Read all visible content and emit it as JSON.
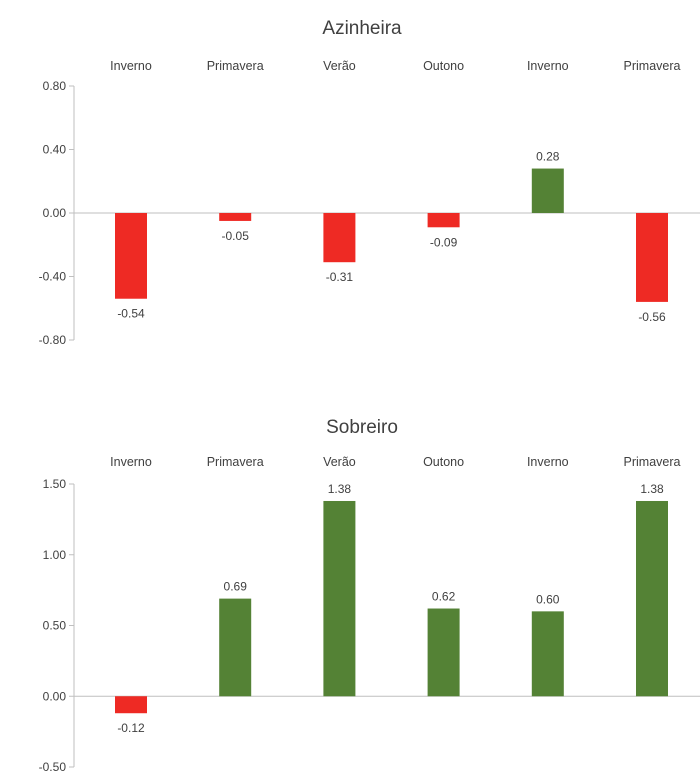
{
  "colors": {
    "positive": "#548235",
    "negative": "#ee2a24",
    "axis": "#bfbfbf",
    "text": "#404040"
  },
  "chart_data": [
    {
      "type": "bar",
      "title": "Azinheira",
      "categories": [
        "Inverno",
        "Primavera",
        "Verão",
        "Outono",
        "Inverno",
        "Primavera"
      ],
      "values": [
        -0.54,
        -0.05,
        -0.31,
        -0.09,
        0.28,
        -0.56
      ],
      "data_labels": [
        "-0.54",
        "-0.05",
        "-0.31",
        "-0.09",
        "0.28",
        "-0.56"
      ],
      "ylim": [
        -0.8,
        0.8
      ],
      "yticks": [
        0.8,
        0.4,
        0.0,
        -0.4,
        -0.8
      ],
      "ytick_labels": [
        "0.80",
        "0.40",
        "0.00",
        "-0.40",
        "-0.80"
      ],
      "category_position": "top",
      "legend": "none",
      "grid": false
    },
    {
      "type": "bar",
      "title": "Sobreiro",
      "categories": [
        "Inverno",
        "Primavera",
        "Verão",
        "Outono",
        "Inverno",
        "Primavera"
      ],
      "values": [
        -0.12,
        0.69,
        1.38,
        0.62,
        0.6,
        1.38
      ],
      "data_labels": [
        "-0.12",
        "0.69",
        "1.38",
        "0.62",
        "0.60",
        "1.38"
      ],
      "ylim": [
        -0.5,
        1.5
      ],
      "yticks": [
        1.5,
        1.0,
        0.5,
        0.0,
        -0.5
      ],
      "ytick_labels": [
        "1.50",
        "1.00",
        "0.50",
        "0.00",
        "-0.50"
      ],
      "category_position": "top",
      "legend": "none",
      "grid": false
    }
  ]
}
